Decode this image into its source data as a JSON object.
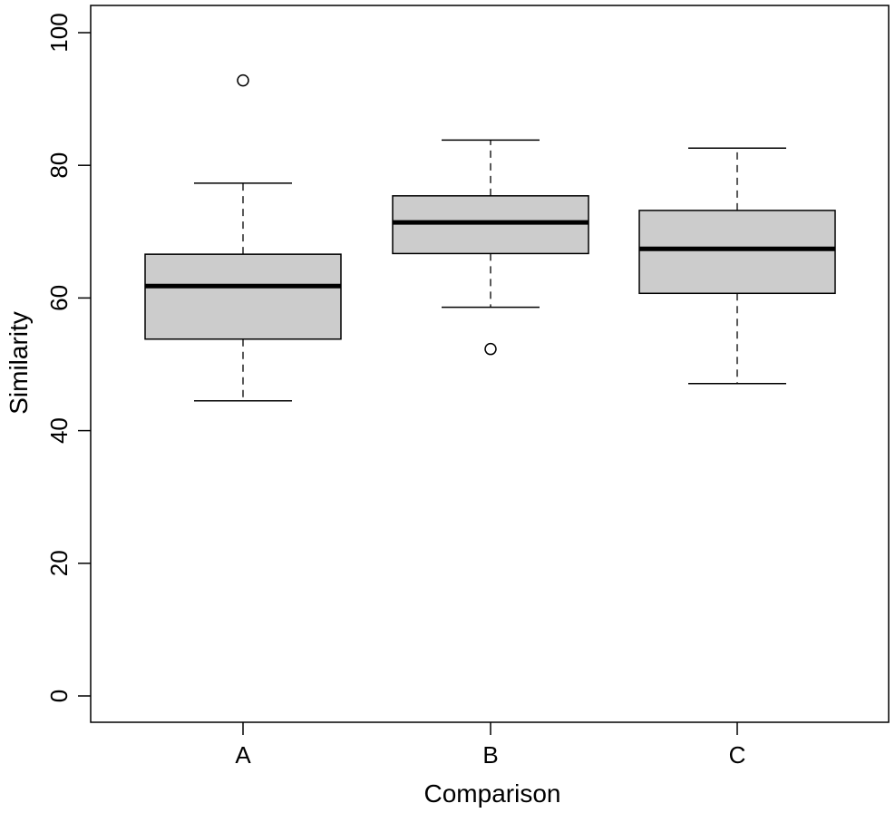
{
  "chart_data": {
    "type": "boxplot",
    "xlabel": "Comparison",
    "ylabel": "Similarity",
    "ylim": [
      0,
      100
    ],
    "yticks": [
      0,
      20,
      40,
      60,
      80,
      100
    ],
    "grid": false,
    "box_fill": "#cccccc",
    "groups": [
      {
        "name": "A",
        "whisker_low": 44.5,
        "q1": 53.8,
        "median": 61.8,
        "q3": 66.6,
        "whisker_high": 77.3,
        "outliers": [
          92.8
        ]
      },
      {
        "name": "B",
        "whisker_low": 58.6,
        "q1": 66.7,
        "median": 71.4,
        "q3": 75.4,
        "whisker_high": 83.8,
        "outliers": [
          52.3
        ]
      },
      {
        "name": "C",
        "whisker_low": 47.1,
        "q1": 60.7,
        "median": 67.4,
        "q3": 73.2,
        "whisker_high": 82.6,
        "outliers": []
      }
    ]
  }
}
